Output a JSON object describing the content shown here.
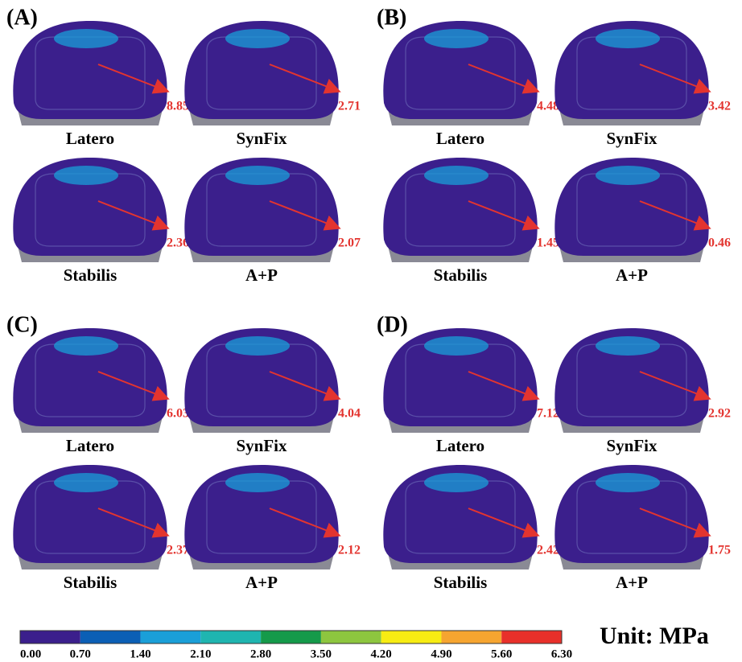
{
  "panels": [
    {
      "label": "(A)",
      "items": [
        {
          "name": "Latero",
          "value": "8.85"
        },
        {
          "name": "SynFix",
          "value": "2.71"
        },
        {
          "name": "Stabilis",
          "value": "2.36"
        },
        {
          "name": "A+P",
          "value": "2.07"
        }
      ]
    },
    {
      "label": "(B)",
      "items": [
        {
          "name": "Latero",
          "value": "4.48"
        },
        {
          "name": "SynFix",
          "value": "3.42"
        },
        {
          "name": "Stabilis",
          "value": "1.45"
        },
        {
          "name": "A+P",
          "value": "0.46"
        }
      ]
    },
    {
      "label": "(C)",
      "items": [
        {
          "name": "Latero",
          "value": "6.03"
        },
        {
          "name": "SynFix",
          "value": "4.04"
        },
        {
          "name": "Stabilis",
          "value": "2.37"
        },
        {
          "name": "A+P",
          "value": "2.12"
        }
      ]
    },
    {
      "label": "(D)",
      "items": [
        {
          "name": "Latero",
          "value": "7.12"
        },
        {
          "name": "SynFix",
          "value": "2.92"
        },
        {
          "name": "Stabilis",
          "value": "2.42"
        },
        {
          "name": "A+P",
          "value": "1.75"
        }
      ]
    }
  ],
  "colorbar": {
    "ticks": [
      "0.00",
      "0.70",
      "1.40",
      "2.10",
      "2.80",
      "3.50",
      "4.20",
      "4.90",
      "5.60",
      "6.30"
    ],
    "colors": [
      "#3b1f8c",
      "#0b5fb5",
      "#1a9fd8",
      "#1fb5b0",
      "#159a4a",
      "#8dc63f",
      "#f7ec13",
      "#f6a530",
      "#e8302a"
    ],
    "unit": "Unit: MPa"
  }
}
